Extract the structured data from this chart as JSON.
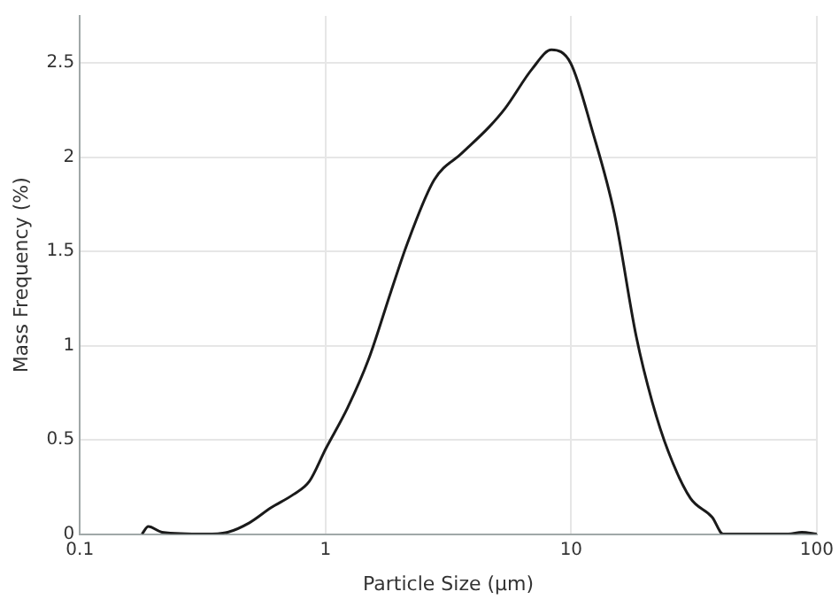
{
  "chart_data": {
    "type": "line",
    "xlabel": "Particle Size (µm)",
    "ylabel": "Mass Frequency (%)",
    "log": "x",
    "xlim": [
      0.1,
      100
    ],
    "xticks": [
      0.1,
      1,
      10,
      100
    ],
    "ylim": [
      0,
      2.75
    ],
    "yticks": [
      0,
      0.5,
      1,
      1.5,
      2,
      2.5
    ],
    "grid": true,
    "marker": "none",
    "line_style": "solid",
    "series": [
      {
        "color": "#1a1a1a",
        "x": [
          0.179,
          0.19,
          0.216,
          0.325,
          0.4,
          0.49,
          0.6,
          0.74,
          0.86,
          1.0,
          1.23,
          1.5,
          1.85,
          2.15,
          2.77,
          3.58,
          4.63,
          5.39,
          6.95,
          8.32,
          9.95,
          12.2,
          15.0,
          18.4,
          21.4,
          25.0,
          30.6,
          37.5,
          41.6,
          76.7,
          86.9,
          100
        ],
        "values": [
          0,
          0.04,
          0.01,
          0,
          0.01,
          0.06,
          0.14,
          0.21,
          0.28,
          0.45,
          0.67,
          0.93,
          1.29,
          1.54,
          1.88,
          2.02,
          2.16,
          2.26,
          2.47,
          2.57,
          2.5,
          2.14,
          1.7,
          1.05,
          0.7,
          0.43,
          0.19,
          0.09,
          0,
          0,
          0.01,
          0
        ]
      }
    ]
  }
}
